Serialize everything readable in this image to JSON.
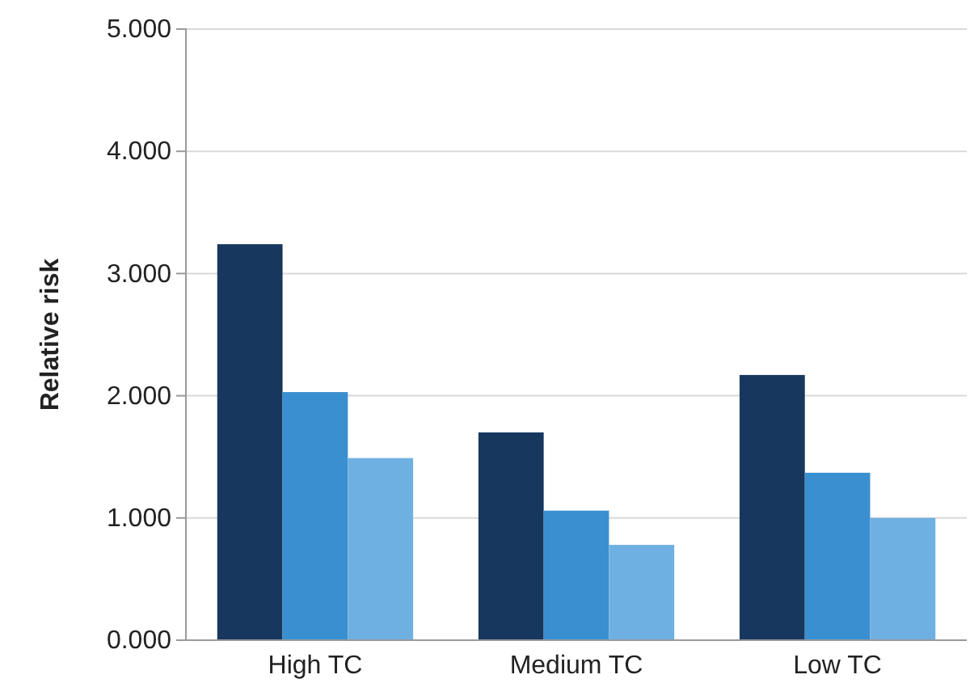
{
  "chart_data": {
    "type": "bar",
    "ylabel": "Relative risk",
    "categories": [
      "High TC",
      "Medium TC",
      "Low TC"
    ],
    "series": [
      {
        "color": "#17375e",
        "values": [
          3.24,
          1.7,
          2.17
        ]
      },
      {
        "color": "#3a8fd0",
        "values": [
          2.03,
          1.06,
          1.37
        ]
      },
      {
        "color": "#6eb0e2",
        "values": [
          1.49,
          0.78,
          1.0
        ]
      }
    ],
    "ylim": [
      0,
      5
    ],
    "yticks": [
      {
        "value": 0,
        "label": "0.000"
      },
      {
        "value": 1,
        "label": "1.000"
      },
      {
        "value": 2,
        "label": "2.000"
      },
      {
        "value": 3,
        "label": "3.000"
      },
      {
        "value": 4,
        "label": "4.000"
      },
      {
        "value": 5,
        "label": "5.000"
      }
    ],
    "grid": "y"
  }
}
